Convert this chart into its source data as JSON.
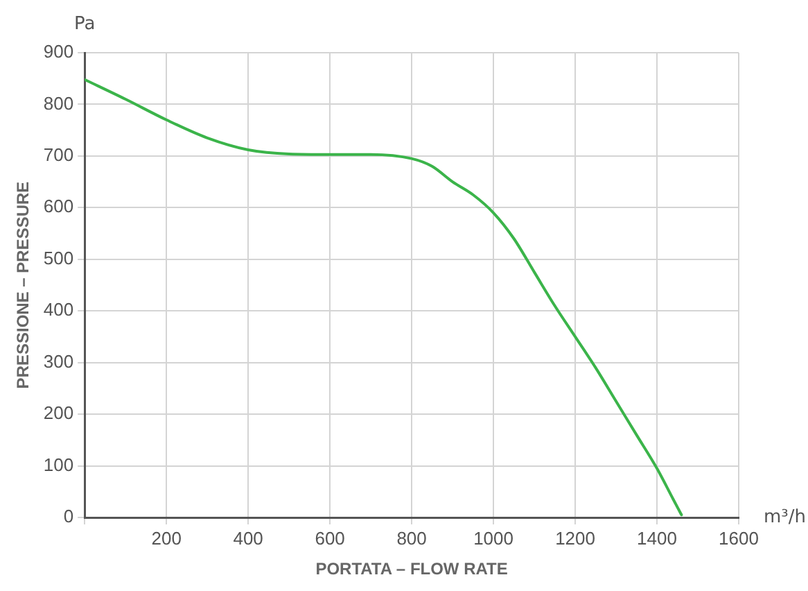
{
  "chart_data": {
    "type": "line",
    "xlabel": "PORTATA – FLOW RATE",
    "ylabel": "PRESSIONE – PRESSURE",
    "annotations": [
      "Pa",
      "m³/h"
    ],
    "series": [
      {
        "color": "#3bb44a",
        "x": [
          0,
          100,
          200,
          300,
          400,
          500,
          600,
          700,
          800,
          850,
          900,
          950,
          1000,
          1050,
          1100,
          1150,
          1200,
          1250,
          1300,
          1350,
          1400,
          1440,
          1460
        ],
        "values": [
          848,
          810,
          770,
          735,
          712,
          704,
          703,
          703,
          695,
          680,
          650,
          625,
          590,
          540,
          475,
          410,
          350,
          290,
          225,
          160,
          95,
          35,
          5
        ]
      }
    ],
    "xlim": [
      0,
      1600
    ],
    "xticks": [
      {
        "value": 0,
        "label": null
      },
      200,
      400,
      600,
      800,
      1000,
      1200,
      1400,
      1600
    ],
    "ylim": [
      0,
      900
    ],
    "yticks": [
      0,
      100,
      200,
      300,
      400,
      500,
      600,
      700,
      800,
      900
    ],
    "grid": true,
    "marker": "none",
    "line_style": "solid"
  }
}
